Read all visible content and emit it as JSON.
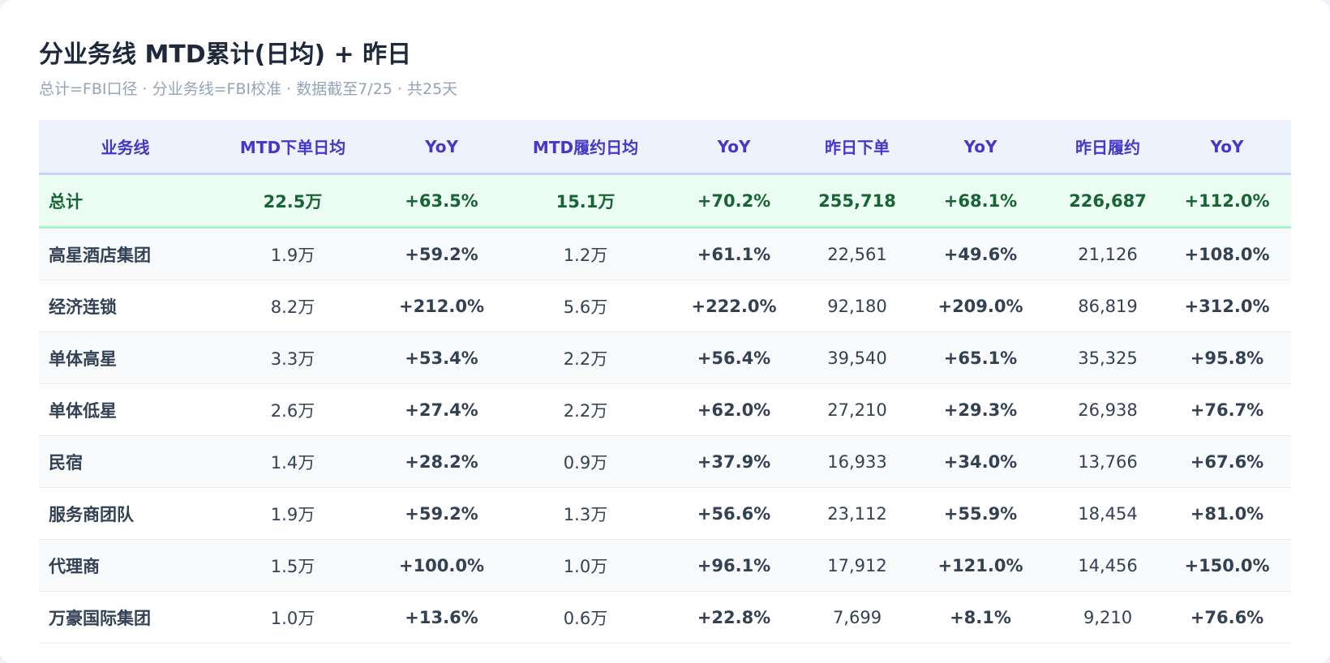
{
  "header": {
    "title": "分业务线 MTD累计(日均) + 昨日",
    "subtitle": "总计=FBI口径 · 分业务线=FBI校准 · 数据截至7/25 · 共25天"
  },
  "table": {
    "columns": [
      "业务线",
      "MTD下单日均",
      "YoY",
      "MTD履约日均",
      "YoY",
      "昨日下单",
      "YoY",
      "昨日履约",
      "YoY"
    ],
    "rows": [
      [
        "总计",
        "22.5万",
        "+63.5%",
        "15.1万",
        "+70.2%",
        "255,718",
        "+68.1%",
        "226,687",
        "+112.0%"
      ],
      [
        "高星酒店集团",
        "1.9万",
        "+59.2%",
        "1.2万",
        "+61.1%",
        "22,561",
        "+49.6%",
        "21,126",
        "+108.0%"
      ],
      [
        "经济连锁",
        "8.2万",
        "+212.0%",
        "5.6万",
        "+222.0%",
        "92,180",
        "+209.0%",
        "86,819",
        "+312.0%"
      ],
      [
        "单体高星",
        "3.3万",
        "+53.4%",
        "2.2万",
        "+56.4%",
        "39,540",
        "+65.1%",
        "35,325",
        "+95.8%"
      ],
      [
        "单体低星",
        "2.6万",
        "+27.4%",
        "2.2万",
        "+62.0%",
        "27,210",
        "+29.3%",
        "26,938",
        "+76.7%"
      ],
      [
        "民宿",
        "1.4万",
        "+28.2%",
        "0.9万",
        "+37.9%",
        "16,933",
        "+34.0%",
        "13,766",
        "+67.6%"
      ],
      [
        "服务商团队",
        "1.9万",
        "+59.2%",
        "1.3万",
        "+56.6%",
        "23,112",
        "+55.9%",
        "18,454",
        "+81.0%"
      ],
      [
        "代理商",
        "1.5万",
        "+100.0%",
        "1.0万",
        "+96.1%",
        "17,912",
        "+121.0%",
        "14,456",
        "+150.0%"
      ],
      [
        "万豪国际集团",
        "1.0万",
        "+13.6%",
        "0.6万",
        "+22.8%",
        "7,699",
        "+8.1%",
        "9,210",
        "+76.6%"
      ]
    ]
  }
}
